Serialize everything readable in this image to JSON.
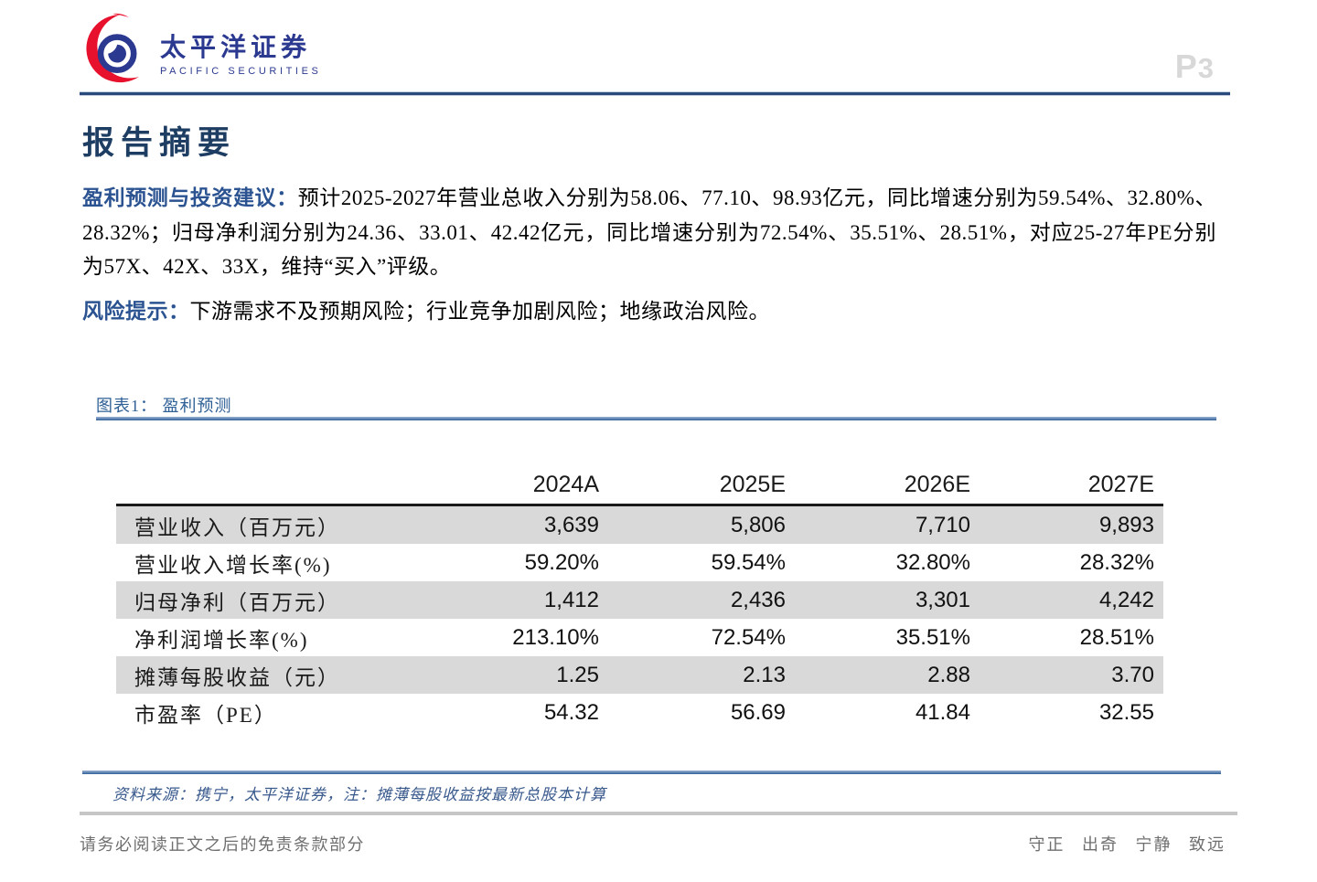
{
  "header": {
    "logo_cn": "太平洋证券",
    "logo_en": "PACIFIC SECURITIES",
    "page_number_prefix": "P",
    "page_number_digit": "3"
  },
  "title": "报告摘要",
  "paragraphs": [
    {
      "lead": "盈利预测与投资建议：",
      "text": "预计2025-2027年营业总收入分别为58.06、77.10、98.93亿元，同比增速分别为59.54%、32.80%、28.32%；归母净利润分别为24.36、33.01、42.42亿元，同比增速分别为72.54%、35.51%、28.51%，对应25-27年PE分别为57X、42X、33X，维持“买入”评级。"
    },
    {
      "lead": "风险提示：",
      "text": "下游需求不及预期风险；行业竞争加剧风险；地缘政治风险。"
    }
  ],
  "figure": {
    "caption": "图表1： 盈利预测",
    "source_note": "资料来源：携宁，太平洋证券，注：摊薄每股收益按最新总股本计算"
  },
  "chart_data": {
    "type": "table",
    "title": "盈利预测",
    "columns": [
      "",
      "2024A",
      "2025E",
      "2026E",
      "2027E"
    ],
    "rows": [
      [
        "营业收入（百万元）",
        "3,639",
        "5,806",
        "7,710",
        "9,893"
      ],
      [
        "营业收入增长率(%)",
        "59.20%",
        "59.54%",
        "32.80%",
        "28.32%"
      ],
      [
        "归母净利（百万元）",
        "1,412",
        "2,436",
        "3,301",
        "4,242"
      ],
      [
        "净利润增长率(%)",
        "213.10%",
        "72.54%",
        "35.51%",
        "28.51%"
      ],
      [
        "摊薄每股收益（元）",
        "1.25",
        "2.13",
        "2.88",
        "3.70"
      ],
      [
        "市盈率（PE）",
        "54.32",
        "56.69",
        "41.84",
        "32.55"
      ]
    ]
  },
  "footer": {
    "left": "请务必阅读正文之后的免责条款部分",
    "right": "守正 出奇 宁静 致远"
  },
  "colors": {
    "header_rule_navy": "#2a4a7b",
    "title_navy": "#1e3d63",
    "lead_blue": "#2b5391",
    "caption_blue": "#2e6096",
    "table_stripe_gray": "#d9d9d9",
    "logo_red": "#e8112d",
    "logo_blue": "#2b3990",
    "page_number_gray": "#d8d8d8",
    "footer_gray": "#6f6f6f"
  }
}
